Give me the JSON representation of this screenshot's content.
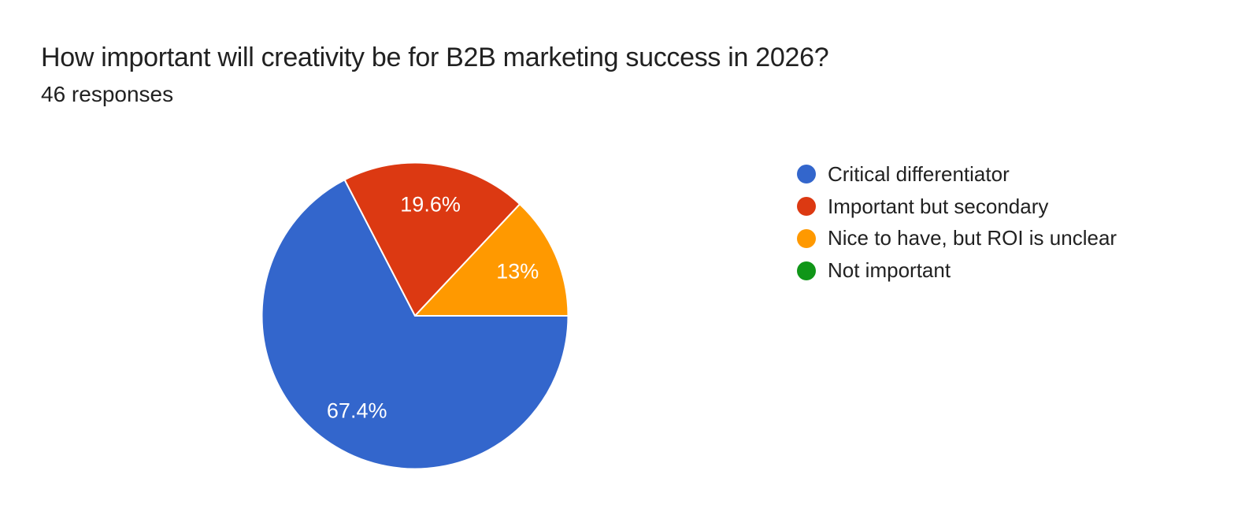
{
  "header": {
    "title": "How important will creativity be for B2B marketing success in 2026?",
    "subtitle": "46 responses"
  },
  "chart_data": {
    "type": "pie",
    "title": "How important will creativity be for B2B marketing success in 2026?",
    "subtitle": "46 responses",
    "total_responses": 46,
    "unit": "percent",
    "legend_position": "right",
    "slice_label_color": "#ffffff",
    "background_color": "#ffffff",
    "slices": [
      {
        "label": "Critical differentiator",
        "value_pct": 67.4,
        "display": "67.4%",
        "color": "#3366CC"
      },
      {
        "label": "Important but secondary",
        "value_pct": 19.6,
        "display": "19.6%",
        "color": "#DC3912"
      },
      {
        "label": "Nice to have, but ROI is unclear",
        "value_pct": 13,
        "display": "13%",
        "color": "#FF9900"
      },
      {
        "label": "Not important",
        "value_pct": 0,
        "display": "",
        "color": "#109618"
      }
    ],
    "layout": {
      "start_at": "3-oclock",
      "direction": "clockwise",
      "label_radius_ratio": 0.73,
      "slice_separator_color": "#ffffff"
    }
  }
}
